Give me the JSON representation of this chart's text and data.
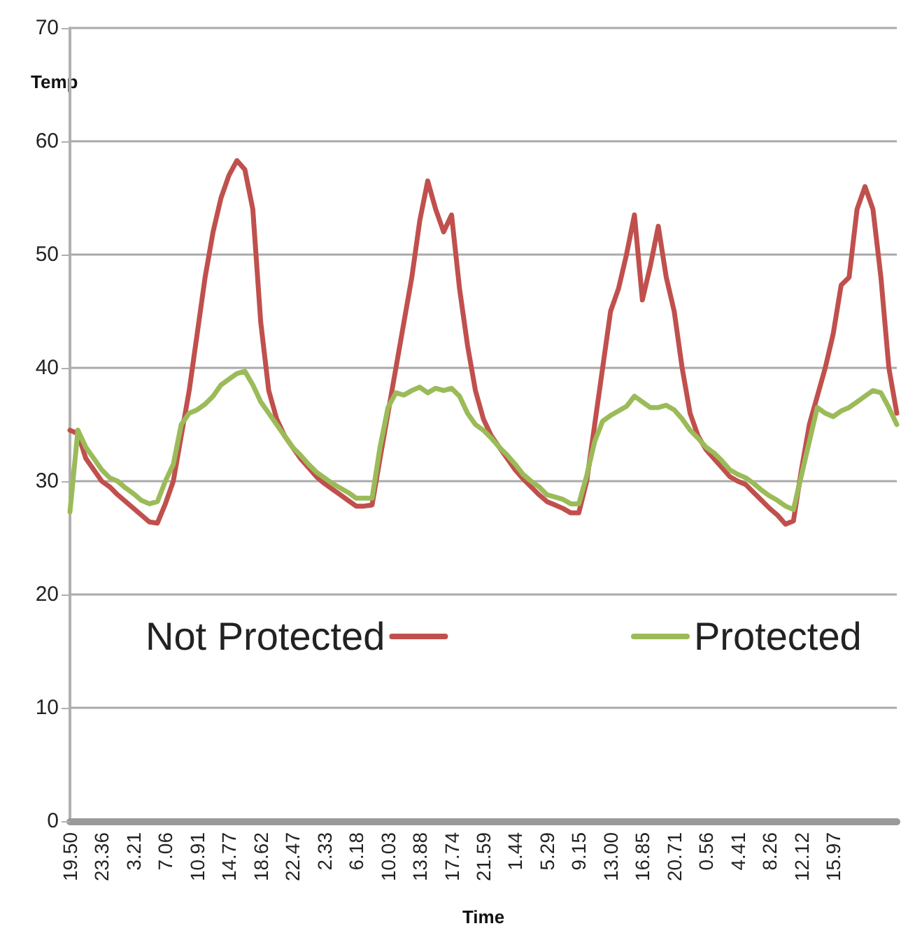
{
  "chart_data": {
    "type": "line",
    "xlabel": "Time",
    "ylabel": "Temp",
    "categories": [
      "19.50",
      null,
      null,
      null,
      "23.36",
      null,
      null,
      null,
      "3.21",
      null,
      null,
      null,
      "7.06",
      null,
      null,
      null,
      "10.91",
      null,
      null,
      null,
      "14.77",
      null,
      null,
      null,
      "18.62",
      null,
      null,
      null,
      "22.47",
      null,
      null,
      null,
      "2.33",
      null,
      null,
      null,
      "6.18",
      null,
      null,
      null,
      "10.03",
      null,
      null,
      null,
      "13.88",
      null,
      null,
      null,
      "17.74",
      null,
      null,
      null,
      "21.59",
      null,
      null,
      null,
      "1.44",
      null,
      null,
      null,
      "5.29",
      null,
      null,
      null,
      "9.15",
      null,
      null,
      null,
      "13.00",
      null,
      null,
      null,
      "16.85",
      null,
      null,
      null,
      "20.71",
      null,
      null,
      null,
      "0.56",
      null,
      null,
      null,
      "4.41",
      null,
      null,
      null,
      "8.26",
      null,
      null,
      null,
      "12.12",
      null,
      null,
      null,
      "15.97",
      null,
      null,
      null,
      null,
      null,
      null,
      null,
      null
    ],
    "series": [
      {
        "name": "Not Protected",
        "color": "#c0504d",
        "values": [
          34.5,
          34.2,
          32,
          31,
          30,
          29.5,
          28.8,
          28.2,
          27.6,
          27,
          26.4,
          26.3,
          28,
          30,
          34,
          38,
          43,
          48,
          52,
          55,
          57,
          58.3,
          57.5,
          54,
          44,
          38,
          35.5,
          34,
          33,
          32,
          31.2,
          30.4,
          29.8,
          29.3,
          28.8,
          28.3,
          27.8,
          27.8,
          27.9,
          32,
          36,
          40,
          44,
          48,
          53,
          56.5,
          54,
          52,
          53.5,
          47,
          42,
          38,
          35.5,
          34,
          33,
          32,
          31,
          30.2,
          29.5,
          28.8,
          28.2,
          27.9,
          27.6,
          27.2,
          27.2,
          30,
          35,
          40,
          45,
          47,
          50,
          53.5,
          46,
          49,
          52.5,
          48,
          45,
          40,
          36,
          34,
          32.8,
          32,
          31.2,
          30.4,
          30,
          29.7,
          29,
          28.3,
          27.6,
          27,
          26.2,
          26.5,
          31,
          35,
          37.5,
          40,
          43,
          47.3,
          48,
          54,
          56,
          54,
          48,
          40,
          36
        ]
      },
      {
        "name": "Protected",
        "color": "#9bbb59",
        "values": [
          27.3,
          34.5,
          33,
          32,
          31,
          30.3,
          30,
          29.4,
          28.9,
          28.3,
          28,
          28.2,
          30,
          31.5,
          35,
          36,
          36.3,
          36.8,
          37.5,
          38.5,
          39,
          39.5,
          39.7,
          38.5,
          37,
          36,
          35,
          34,
          33,
          32.3,
          31.5,
          30.8,
          30.3,
          29.8,
          29.4,
          29,
          28.5,
          28.5,
          28.5,
          33,
          36.5,
          37.8,
          37.6,
          38,
          38.3,
          37.8,
          38.2,
          38,
          38.2,
          37.5,
          36,
          35,
          34.5,
          33.8,
          33,
          32.3,
          31.5,
          30.6,
          30,
          29.5,
          28.8,
          28.6,
          28.4,
          28,
          28,
          30.5,
          33.5,
          35.3,
          35.8,
          36.2,
          36.6,
          37.5,
          37,
          36.5,
          36.5,
          36.7,
          36.3,
          35.5,
          34.5,
          33.8,
          33,
          32.5,
          31.8,
          31,
          30.6,
          30.3,
          29.8,
          29.2,
          28.7,
          28.3,
          27.8,
          27.5,
          30.5,
          33.5,
          36.5,
          36,
          35.7,
          36.2,
          36.5,
          37,
          37.5,
          38,
          37.8,
          36.5,
          35
        ]
      }
    ],
    "ylim": [
      0,
      70
    ],
    "yticks": [
      0,
      10,
      20,
      30,
      40,
      50,
      60,
      70
    ],
    "grid": "y",
    "legend": "bottom"
  }
}
